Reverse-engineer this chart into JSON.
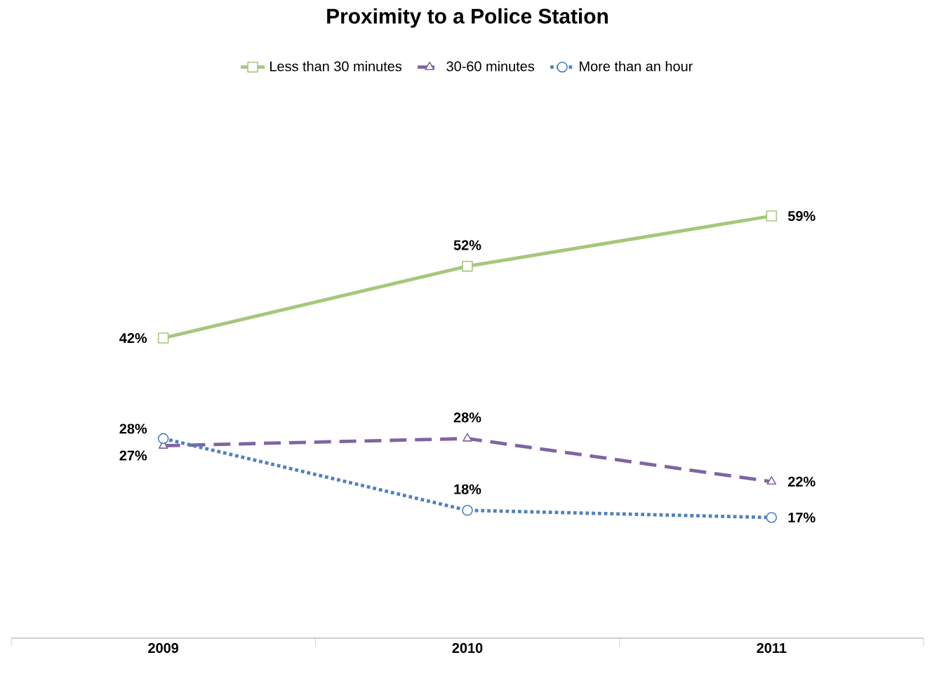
{
  "chart_data": {
    "type": "line",
    "title": "Proximity to a Police Station",
    "categories": [
      "2009",
      "2010",
      "2011"
    ],
    "tick_labels": "x",
    "grid": false,
    "legend": "top",
    "series": [
      {
        "name": "Less than 30 minutes",
        "color": "#a6c77c",
        "marker": "square",
        "line_style": "solid",
        "values": [
          42,
          52,
          59
        ],
        "value_labels": [
          "42%",
          "52%",
          "59%"
        ]
      },
      {
        "name": "30-60 minutes",
        "color": "#8064a2",
        "marker": "triangle",
        "line_style": "dashed",
        "values": [
          27,
          28,
          22
        ],
        "value_labels": [
          "27%",
          "28%",
          "22%"
        ]
      },
      {
        "name": "More than an hour",
        "color": "#4f81bd",
        "marker": "circle",
        "line_style": "dotted",
        "values": [
          28,
          18,
          17
        ],
        "value_labels": [
          "28%",
          "18%",
          "17%"
        ]
      }
    ]
  }
}
